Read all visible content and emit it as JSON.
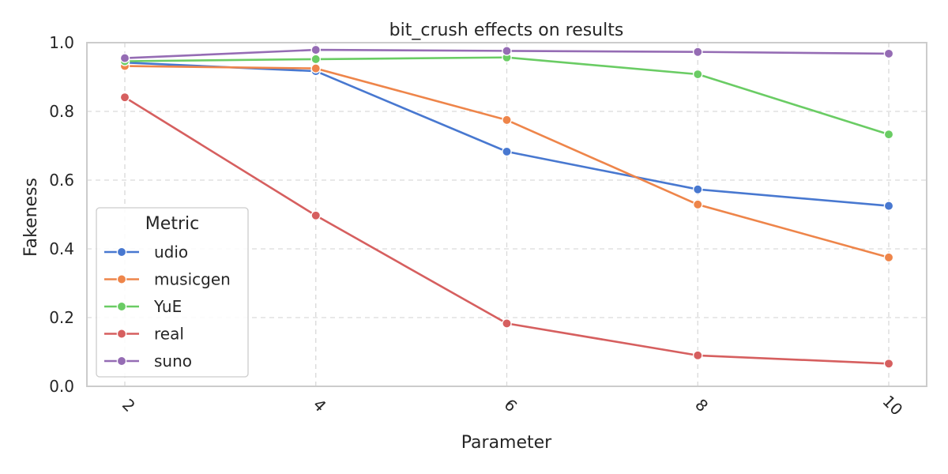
{
  "chart_data": {
    "type": "line",
    "title": "bit_crush effects on results",
    "xlabel": "Parameter",
    "ylabel": "Fakeness",
    "x": [
      2,
      4,
      6,
      8,
      10
    ],
    "xticks": [
      "2",
      "4",
      "6",
      "8",
      "10"
    ],
    "ylim": [
      0.0,
      1.0
    ],
    "yticks": [
      "0.0",
      "0.2",
      "0.4",
      "0.6",
      "0.8",
      "1.0"
    ],
    "grid": true,
    "legend": {
      "title": "Metric",
      "placement": "lower-left"
    },
    "series": [
      {
        "name": "udio",
        "color": "#4878d0",
        "values": [
          0.942,
          0.917,
          0.683,
          0.573,
          0.525
        ]
      },
      {
        "name": "musicgen",
        "color": "#ee854a",
        "values": [
          0.932,
          0.925,
          0.775,
          0.529,
          0.375
        ]
      },
      {
        "name": "YuE",
        "color": "#6acc64",
        "values": [
          0.946,
          0.952,
          0.957,
          0.908,
          0.733
        ]
      },
      {
        "name": "real",
        "color": "#d65f5f",
        "values": [
          0.841,
          0.497,
          0.183,
          0.09,
          0.066
        ]
      },
      {
        "name": "suno",
        "color": "#956cb4",
        "values": [
          0.955,
          0.979,
          0.976,
          0.973,
          0.968
        ]
      }
    ]
  }
}
